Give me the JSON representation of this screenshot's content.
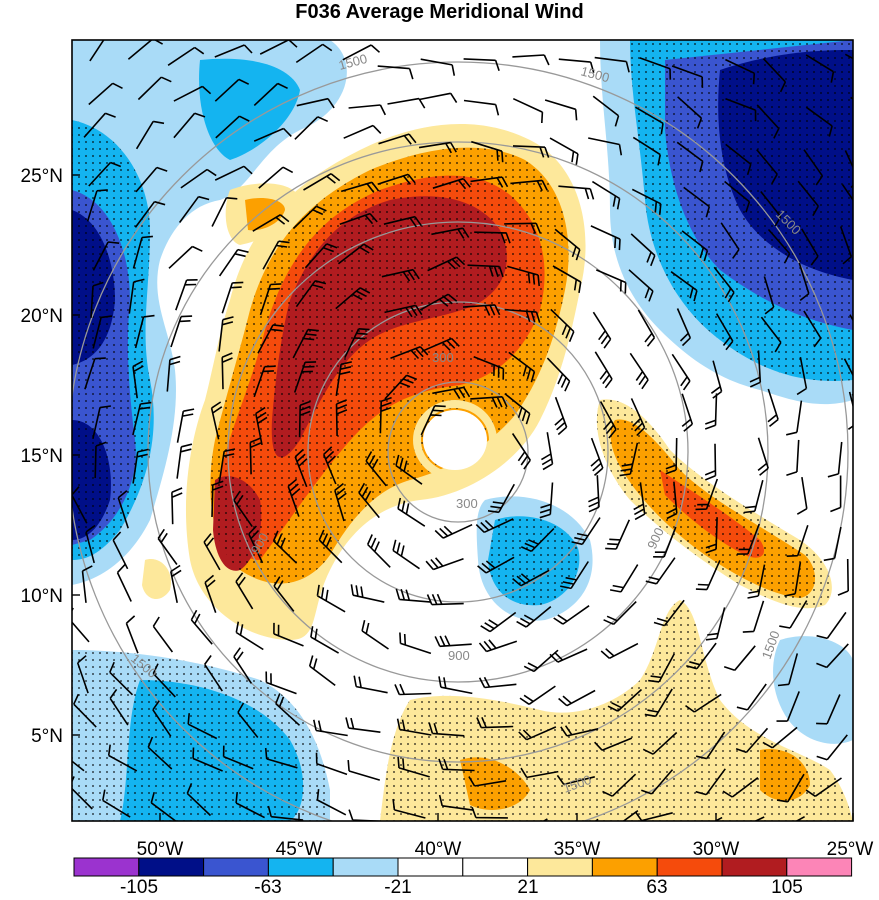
{
  "title": "F036 Average Meridional Wind",
  "y_ticks": [
    "25°N",
    "20°N",
    "15°N",
    "10°N",
    "5°N"
  ],
  "x_ticks": [
    "50°W",
    "45°W",
    "40°W",
    "35°W",
    "30°W",
    "25°W"
  ],
  "ring_labels": [
    "300",
    "300",
    "900",
    "900",
    "900",
    "1500",
    "1500",
    "1500",
    "1500",
    "1500",
    "1500"
  ],
  "colorbar": {
    "colors": [
      "#9b33cf",
      "#000f88",
      "#3a55d0",
      "#14b4f0",
      "#a9dbf7",
      "#ffffff",
      "#ffffff",
      "#fde89b",
      "#fca000",
      "#f54b0c",
      "#b11c20",
      "#fc85b7"
    ],
    "labels": [
      "-105",
      "-63",
      "-21",
      "21",
      "63",
      "105"
    ]
  }
}
